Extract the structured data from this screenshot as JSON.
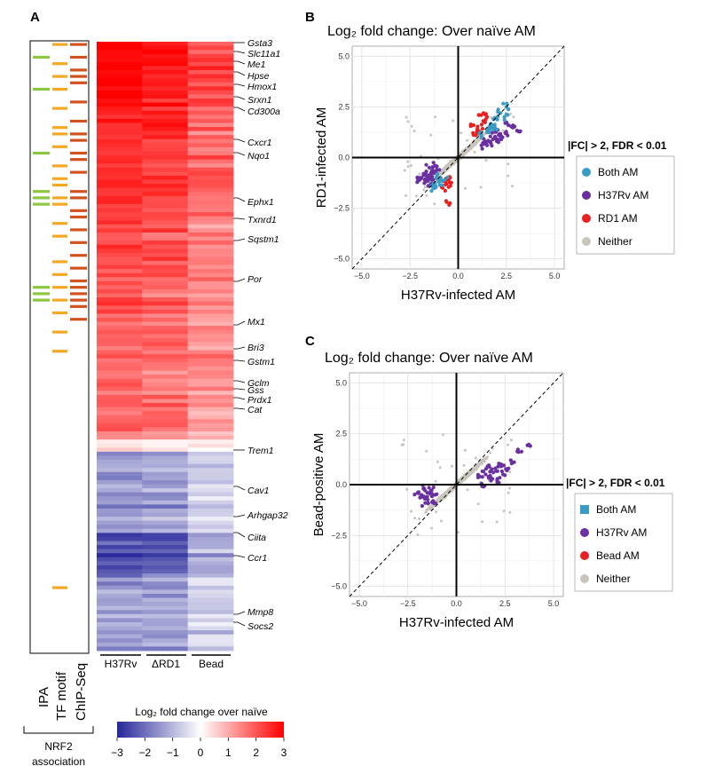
{
  "panels": {
    "a": "A",
    "b": "B",
    "c": "C"
  },
  "annotation_tracks": {
    "labels": [
      "IPA",
      "TF motif",
      "ChIP-Seq"
    ],
    "group_label_line1": "NRF2",
    "group_label_line2": "association",
    "colors": {
      "IPA": "#8dc63f",
      "TF motif": "#f7a823",
      "ChIP-Seq": "#d2521f"
    },
    "ipa_rows": [
      2,
      7,
      17,
      23,
      24,
      25,
      38,
      39,
      40
    ],
    "tf_rows": [
      0,
      3,
      5,
      7,
      10,
      13,
      14,
      16,
      19,
      21,
      22,
      24,
      25,
      28,
      30,
      34,
      36,
      38,
      40,
      42,
      45,
      48,
      85
    ],
    "chip_rows": [
      0,
      2,
      4,
      5,
      6,
      9,
      12,
      14,
      15,
      17,
      18,
      20,
      23,
      24,
      26,
      27,
      29,
      31,
      33,
      35,
      37,
      38,
      39,
      40,
      41,
      43
    ]
  },
  "heatmap": {
    "columns": [
      "H37Rv",
      "ΔRD1",
      "Bead"
    ],
    "genes": [
      "Gsta3",
      "Slc11a1",
      "Me1",
      "Hpse",
      "Hmox1",
      "Srxn1",
      "Cd300a",
      "Cxcr1",
      "Nqo1",
      "Ephx1",
      "Txnrd1",
      "Sqstm1",
      "Por",
      "Mx1",
      "Bri3",
      "Gstm1",
      "Gclm",
      "Gss",
      "Prdx1",
      "Cat",
      "Trem1",
      "Cav1",
      "Arhgap32",
      "Ciita",
      "Ccr1",
      "Mmp8",
      "Socs2"
    ],
    "scale_title": "Log₂ fold change over naïve",
    "scale_ticks": [
      "−3",
      "−2",
      "−1",
      "0",
      "1",
      "2",
      "3"
    ],
    "scale_min": -3,
    "scale_max": 3,
    "color_low": "#26269a",
    "color_mid": "#ffffff",
    "color_high": "#ff0000"
  },
  "chart_data": [
    {
      "type": "scatter",
      "panel": "B",
      "title": "Log₂ fold change: Over naïve AM",
      "xlabel": "H37Rv-infected AM",
      "ylabel": "RD1-infected AM",
      "xlim": [
        -5.5,
        5.5
      ],
      "ylim": [
        -5.5,
        5.5
      ],
      "xticks": [
        "−5.0",
        "−2.5",
        "0.0",
        "2.5",
        "5.0"
      ],
      "yticks": [
        "−5.0",
        "−2.5",
        "0.0",
        "2.5",
        "5.0"
      ],
      "grid": true,
      "legend_title": "|FC| > 2, FDR < 0.01",
      "legend_position": "right",
      "series": [
        {
          "name": "Both AM",
          "color": "#3a9cc4",
          "points": [
            [
              1.5,
              1.3
            ],
            [
              1.8,
              1.6
            ],
            [
              2.0,
              1.9
            ],
            [
              2.2,
              2.2
            ],
            [
              2.5,
              2.5
            ],
            [
              1.2,
              1.1
            ],
            [
              1.6,
              1.4
            ],
            [
              1.9,
              1.5
            ],
            [
              2.4,
              2.0
            ],
            [
              -1.0,
              -1.2
            ],
            [
              -1.2,
              -1.3
            ],
            [
              -0.9,
              -1.0
            ],
            [
              -1.3,
              -1.5
            ],
            [
              -0.7,
              -1.1
            ],
            [
              -1.1,
              -0.9
            ]
          ]
        },
        {
          "name": "H37Rv AM",
          "color": "#6a2fa0",
          "points": [
            [
              2.0,
              0.8
            ],
            [
              2.3,
              1.0
            ],
            [
              1.5,
              0.6
            ],
            [
              2.5,
              1.2
            ],
            [
              3.1,
              1.3
            ],
            [
              1.8,
              0.9
            ],
            [
              2.1,
              1.1
            ],
            [
              1.7,
              0.7
            ],
            [
              2.6,
              1.6
            ],
            [
              1.4,
              0.8
            ],
            [
              1.2,
              0.6
            ],
            [
              2.8,
              1.5
            ],
            [
              1.9,
              1.3
            ],
            [
              -1.5,
              -0.5
            ],
            [
              -1.3,
              -0.7
            ],
            [
              -1.8,
              -0.8
            ],
            [
              -1.6,
              -1.0
            ],
            [
              -1.2,
              -0.4
            ],
            [
              -1.4,
              -1.3
            ],
            [
              -1.7,
              -1.2
            ],
            [
              -1.1,
              -0.6
            ],
            [
              -1.9,
              -1.0
            ],
            [
              -1.5,
              -0.9
            ],
            [
              -1.3,
              -1.1
            ],
            [
              -2.0,
              -1.1
            ]
          ]
        },
        {
          "name": "RD1 AM",
          "color": "#e8201f",
          "points": [
            [
              1.0,
              1.4
            ],
            [
              1.3,
              1.8
            ],
            [
              0.9,
              1.1
            ],
            [
              1.5,
              2.0
            ],
            [
              0.8,
              1.6
            ],
            [
              1.1,
              1.3
            ],
            [
              1.2,
              2.1
            ],
            [
              -0.6,
              -1.3
            ],
            [
              -0.5,
              -1.1
            ],
            [
              -0.8,
              -1.5
            ],
            [
              -0.4,
              -1.4
            ],
            [
              -0.6,
              -2.2
            ]
          ]
        },
        {
          "name": "Neither",
          "color": "#c9c4bc",
          "points": []
        }
      ]
    },
    {
      "type": "scatter",
      "panel": "C",
      "title": "Log₂ fold change: Over naïve AM",
      "xlabel": "H37Rv-infected AM",
      "ylabel": "Bead-positive AM",
      "xlim": [
        -5.5,
        5.5
      ],
      "ylim": [
        -5.5,
        5.5
      ],
      "xticks": [
        "−5.0",
        "−2.5",
        "0.0",
        "2.5",
        "5.0"
      ],
      "yticks": [
        "−5.0",
        "−2.5",
        "0.0",
        "2.5",
        "5.0"
      ],
      "grid": true,
      "legend_title": "|FC| > 2, FDR < 0.01",
      "legend_position": "right",
      "series": [
        {
          "name": "Both AM",
          "color": "#3a9cc4",
          "points": []
        },
        {
          "name": "H37Rv AM",
          "color": "#6a2fa0",
          "points": [
            [
              1.5,
              0.5
            ],
            [
              2.0,
              0.8
            ],
            [
              1.8,
              0.3
            ],
            [
              2.3,
              1.0
            ],
            [
              2.6,
              0.7
            ],
            [
              1.2,
              0.4
            ],
            [
              1.6,
              0.9
            ],
            [
              2.1,
              0.2
            ],
            [
              2.8,
              1.2
            ],
            [
              3.2,
              1.6
            ],
            [
              3.8,
              1.9
            ],
            [
              1.4,
              -0.1
            ],
            [
              1.9,
              0.6
            ],
            [
              2.4,
              0.5
            ],
            [
              -1.3,
              -0.3
            ],
            [
              -1.5,
              -0.6
            ],
            [
              -1.8,
              -0.5
            ],
            [
              -1.2,
              -0.8
            ],
            [
              -1.6,
              -0.9
            ],
            [
              -1.4,
              -0.4
            ],
            [
              -1.1,
              -0.5
            ],
            [
              -1.7,
              -0.2
            ],
            [
              -2.0,
              -0.4
            ]
          ]
        },
        {
          "name": "Bead AM",
          "color": "#e8201f",
          "points": []
        },
        {
          "name": "Neither",
          "color": "#c9c4bc",
          "points": []
        }
      ]
    }
  ]
}
